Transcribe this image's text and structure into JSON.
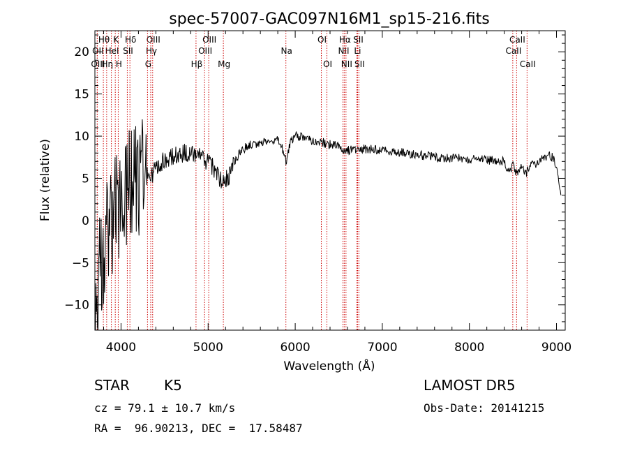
{
  "chart_data": {
    "type": "line",
    "title": "spec-57007-GAC097N16M1_sp15-216.fits",
    "xlabel": "Wavelength (Å)",
    "ylabel": "Flux (relative)",
    "xlim": [
      3700,
      9100
    ],
    "ylim": [
      -13,
      22.5
    ],
    "x_ticks": [
      4000,
      5000,
      6000,
      7000,
      8000,
      9000
    ],
    "x_tick_labels": [
      "4000",
      "5000",
      "6000",
      "7000",
      "8000",
      "9000"
    ],
    "y_ticks": [
      -10,
      -5,
      0,
      5,
      10,
      15,
      20
    ],
    "y_tick_labels": [
      "−10",
      "−5",
      "0",
      "5",
      "10",
      "15",
      "20"
    ],
    "grid": false,
    "series": [
      {
        "x": [
          3700,
          3760,
          3800,
          3850,
          3900,
          3950,
          4000,
          4050,
          4100,
          4150,
          4200,
          4250,
          4300,
          4350,
          4400,
          4450,
          4500,
          4600,
          4700,
          4800,
          4850,
          4900,
          4950,
          5000,
          5050,
          5100,
          5150,
          5200,
          5300,
          5400,
          5500,
          5600,
          5700,
          5800,
          5850,
          5900,
          5950,
          6000,
          6100,
          6200,
          6300,
          6400,
          6500,
          6550,
          6600,
          6700,
          6800,
          6900,
          7000,
          7200,
          7400,
          7600,
          7800,
          8000,
          8200,
          8400,
          8450,
          8500,
          8550,
          8600,
          8650,
          8700,
          8750,
          8800,
          8850,
          8900,
          8950,
          9000,
          9050
        ],
        "y": [
          -12.5,
          -5,
          -3,
          -1,
          0,
          1,
          2,
          3,
          4,
          5,
          5,
          5,
          5.5,
          5.5,
          6,
          7,
          7,
          7.5,
          8,
          8,
          7.5,
          7.5,
          7,
          7,
          6.5,
          5.5,
          4.5,
          4.5,
          7,
          8.5,
          9,
          9.2,
          9.5,
          9.5,
          8.5,
          7,
          9.5,
          10,
          10,
          9.5,
          9.3,
          9,
          8.8,
          8.5,
          8.3,
          8.5,
          8.5,
          8.4,
          8.3,
          8.1,
          7.8,
          7.5,
          7.4,
          7.3,
          7.2,
          7,
          5.8,
          6.5,
          5.5,
          6.3,
          5.5,
          6.8,
          6.5,
          7.2,
          7.2,
          7.8,
          7.5,
          6.5,
          3
        ]
      }
    ],
    "line_ids": [
      {
        "label": "Hθ",
        "wave": 3797,
        "row": 1
      },
      {
        "label": "OII",
        "wave": 3727,
        "row": 2
      },
      {
        "label": "OIII",
        "wave": 3727,
        "row": 3
      },
      {
        "label": "K",
        "wave": 3934,
        "row": 1
      },
      {
        "label": "HeI",
        "wave": 3889,
        "row": 2
      },
      {
        "label": "Hη",
        "wave": 3835,
        "row": 3
      },
      {
        "label": "Hδ",
        "wave": 4102,
        "row": 1
      },
      {
        "label": "SII",
        "wave": 4072,
        "row": 2
      },
      {
        "label": "H",
        "wave": 3968,
        "row": 3
      },
      {
        "label": "OIII",
        "wave": 4363,
        "row": 1
      },
      {
        "label": "Hγ",
        "wave": 4341,
        "row": 2
      },
      {
        "label": "G",
        "wave": 4304,
        "row": 3
      },
      {
        "label": "OIII",
        "wave": 5007,
        "row": 1
      },
      {
        "label": "OIII",
        "wave": 4959,
        "row": 2
      },
      {
        "label": "Hβ",
        "wave": 4861,
        "row": 3
      },
      {
        "label": "Mg",
        "wave": 5175,
        "row": 3
      },
      {
        "label": "Na",
        "wave": 5893,
        "row": 2
      },
      {
        "label": "OI",
        "wave": 6300,
        "row": 1
      },
      {
        "label": "OI",
        "wave": 6364,
        "row": 3
      },
      {
        "label": "Hα",
        "wave": 6563,
        "row": 1
      },
      {
        "label": "SII",
        "wave": 6716,
        "row": 1
      },
      {
        "label": "NII",
        "wave": 6548,
        "row": 2
      },
      {
        "label": "Li",
        "wave": 6708,
        "row": 2
      },
      {
        "label": "NII",
        "wave": 6583,
        "row": 3
      },
      {
        "label": "SII",
        "wave": 6731,
        "row": 3
      },
      {
        "label": "CaII",
        "wave": 8542,
        "row": 1
      },
      {
        "label": "CaII",
        "wave": 8498,
        "row": 2
      },
      {
        "label": "CaII",
        "wave": 8662,
        "row": 3
      }
    ]
  },
  "info": {
    "object_class": "STAR",
    "subclass": "K5",
    "survey": "LAMOST DR5",
    "velocity": "cz = 79.1 ± 10.7 km/s",
    "obs_date": "Obs-Date: 20141215",
    "coords": "RA =  96.90213, DEC =  17.58487"
  }
}
